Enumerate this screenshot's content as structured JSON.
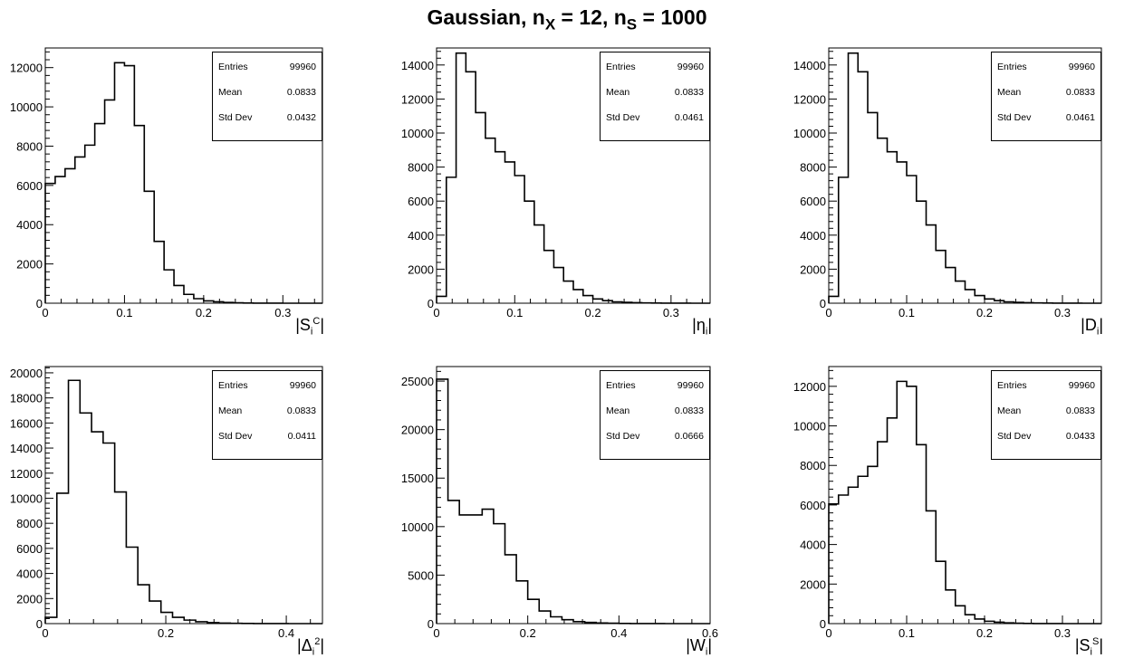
{
  "title": {
    "main": "Gaussian, n",
    "sub1": "X",
    "mid": " = 12, n",
    "sub2": "S",
    "end": " = 1000"
  },
  "stats_labels": {
    "entries": "Entries",
    "mean": "Mean",
    "std": "Std Dev"
  },
  "colors": {
    "line": "#000000",
    "background": "#ffffff"
  },
  "chart_data": [
    {
      "type": "histogram",
      "xlabel": {
        "base": "|S",
        "sub": "i",
        "sup": "C",
        "end": "|"
      },
      "xlim": [
        0,
        0.35
      ],
      "ylim": [
        0,
        13000
      ],
      "xticks": [
        "0",
        "0.1",
        "0.2",
        "0.3"
      ],
      "xtick_values": [
        0,
        0.1,
        0.2,
        0.3
      ],
      "yticks": [
        "0",
        "2000",
        "4000",
        "6000",
        "8000",
        "10000",
        "12000"
      ],
      "ytick_values": [
        0,
        2000,
        4000,
        6000,
        8000,
        10000,
        12000
      ],
      "bin_width": 0.0125,
      "values": [
        6100,
        6450,
        6850,
        7450,
        8050,
        9150,
        10350,
        12250,
        12100,
        9050,
        5700,
        3150,
        1700,
        900,
        450,
        230,
        120,
        70,
        40,
        20,
        10,
        5,
        2,
        1,
        0,
        0,
        0,
        0
      ],
      "stats": {
        "entries": "99960",
        "mean": "0.0833",
        "std": "0.0432"
      }
    },
    {
      "type": "histogram",
      "xlabel": {
        "base": "|η",
        "sub": "i",
        "sup": "",
        "end": "|"
      },
      "xlim": [
        0,
        0.35
      ],
      "ylim": [
        0,
        15000
      ],
      "xticks": [
        "0",
        "0.1",
        "0.2",
        "0.3"
      ],
      "xtick_values": [
        0,
        0.1,
        0.2,
        0.3
      ],
      "yticks": [
        "0",
        "2000",
        "4000",
        "6000",
        "8000",
        "10000",
        "12000",
        "14000"
      ],
      "ytick_values": [
        0,
        2000,
        4000,
        6000,
        8000,
        10000,
        12000,
        14000
      ],
      "bin_width": 0.0125,
      "values": [
        400,
        7400,
        14700,
        13600,
        11200,
        9700,
        8900,
        8300,
        7500,
        6000,
        4600,
        3100,
        2100,
        1300,
        800,
        450,
        250,
        150,
        80,
        50,
        30,
        15,
        8,
        4,
        2,
        1,
        0,
        0
      ],
      "stats": {
        "entries": "99960",
        "mean": "0.0833",
        "std": "0.0461"
      }
    },
    {
      "type": "histogram",
      "xlabel": {
        "base": "|D",
        "sub": "i",
        "sup": "",
        "end": "|"
      },
      "xlim": [
        0,
        0.35
      ],
      "ylim": [
        0,
        15000
      ],
      "xticks": [
        "0",
        "0.1",
        "0.2",
        "0.3"
      ],
      "xtick_values": [
        0,
        0.1,
        0.2,
        0.3
      ],
      "yticks": [
        "0",
        "2000",
        "4000",
        "6000",
        "8000",
        "10000",
        "12000",
        "14000"
      ],
      "ytick_values": [
        0,
        2000,
        4000,
        6000,
        8000,
        10000,
        12000,
        14000
      ],
      "bin_width": 0.0125,
      "values": [
        400,
        7400,
        14700,
        13600,
        11200,
        9700,
        8900,
        8300,
        7500,
        6000,
        4600,
        3100,
        2100,
        1300,
        800,
        450,
        250,
        150,
        80,
        50,
        30,
        15,
        8,
        4,
        2,
        1,
        0,
        0
      ],
      "stats": {
        "entries": "99960",
        "mean": "0.0833",
        "std": "0.0461"
      }
    },
    {
      "type": "histogram",
      "xlabel": {
        "base": "|Δ",
        "sub": "i",
        "sup": "2",
        "end": "|"
      },
      "xlim": [
        0,
        0.46
      ],
      "ylim": [
        0,
        20500
      ],
      "xticks": [
        "0",
        "0.2",
        "0.4"
      ],
      "xtick_values": [
        0,
        0.2,
        0.4
      ],
      "yticks": [
        "0",
        "2000",
        "4000",
        "6000",
        "8000",
        "10000",
        "12000",
        "14000",
        "16000",
        "18000",
        "20000"
      ],
      "ytick_values": [
        0,
        2000,
        4000,
        6000,
        8000,
        10000,
        12000,
        14000,
        16000,
        18000,
        20000
      ],
      "bin_width": 0.0192,
      "values": [
        500,
        10400,
        19400,
        16800,
        15300,
        14400,
        10500,
        6100,
        3100,
        1800,
        900,
        500,
        280,
        150,
        80,
        40,
        20,
        10,
        5,
        2,
        1,
        0,
        0,
        0
      ],
      "stats": {
        "entries": "99960",
        "mean": "0.0833",
        "std": "0.0411"
      }
    },
    {
      "type": "histogram",
      "xlabel": {
        "base": "|W",
        "sub": "i",
        "sup": "",
        "end": "|"
      },
      "xlim": [
        0,
        0.6
      ],
      "ylim": [
        0,
        26500
      ],
      "xticks": [
        "0",
        "0.2",
        "0.4",
        "0.6"
      ],
      "xtick_values": [
        0,
        0.2,
        0.4,
        0.6
      ],
      "yticks": [
        "0",
        "5000",
        "10000",
        "15000",
        "20000",
        "25000"
      ],
      "ytick_values": [
        0,
        5000,
        10000,
        15000,
        20000,
        25000
      ],
      "bin_width": 0.025,
      "values": [
        25200,
        12700,
        11200,
        11200,
        11800,
        10300,
        7100,
        4400,
        2500,
        1300,
        700,
        400,
        200,
        120,
        70,
        40,
        20,
        10,
        5,
        2,
        1,
        0,
        0,
        0
      ],
      "stats": {
        "entries": "99960",
        "mean": "0.0833",
        "std": "0.0666"
      }
    },
    {
      "type": "histogram",
      "xlabel": {
        "base": "|S",
        "sub": "i",
        "sup": "S",
        "end": "|"
      },
      "xlim": [
        0,
        0.35
      ],
      "ylim": [
        0,
        13000
      ],
      "xticks": [
        "0",
        "0.1",
        "0.2",
        "0.3"
      ],
      "xtick_values": [
        0,
        0.1,
        0.2,
        0.3
      ],
      "yticks": [
        "0",
        "2000",
        "4000",
        "6000",
        "8000",
        "10000",
        "12000"
      ],
      "ytick_values": [
        0,
        2000,
        4000,
        6000,
        8000,
        10000,
        12000
      ],
      "bin_width": 0.0125,
      "values": [
        6050,
        6500,
        6900,
        7450,
        7950,
        9200,
        10400,
        12250,
        12000,
        9050,
        5700,
        3150,
        1700,
        900,
        450,
        230,
        120,
        70,
        40,
        20,
        10,
        5,
        2,
        1,
        0,
        0,
        0,
        0
      ],
      "stats": {
        "entries": "99960",
        "mean": "0.0833",
        "std": "0.0433"
      }
    }
  ]
}
